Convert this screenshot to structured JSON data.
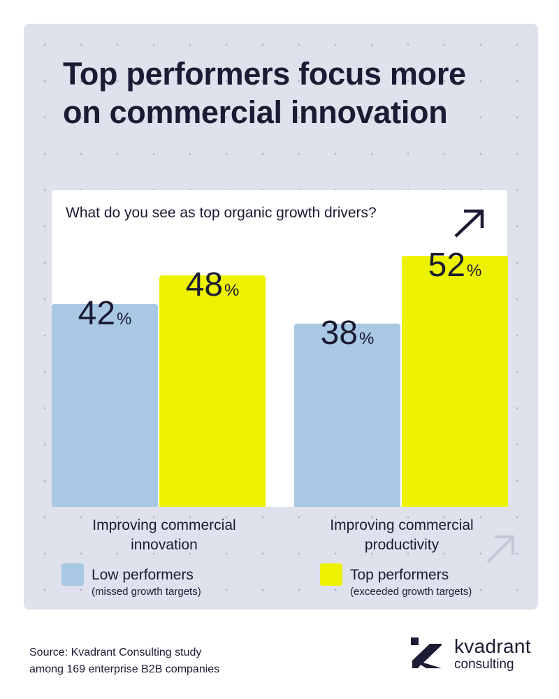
{
  "title": "Top performers focus more on commercial innovation",
  "colors": {
    "low": "#a8c8e3",
    "top": "#ecf200",
    "panel": "#dfe2ec",
    "text": "#1b1b33"
  },
  "chart_data": {
    "type": "bar",
    "title": "What do you see as top organic growth drivers?",
    "categories": [
      "Improving commercial innovation",
      "Improving commercial productivity"
    ],
    "series": [
      {
        "name": "Low performers",
        "note": "(missed growth targets)",
        "values": [
          42,
          38
        ]
      },
      {
        "name": "Top performers",
        "note": "(exceeded growth targets)",
        "values": [
          48,
          52
        ]
      }
    ],
    "unit": "%",
    "ylim": [
      0,
      100
    ]
  },
  "source": {
    "line1": "Source: Kvadrant Consulting study",
    "line2": "among 169 enterprise B2B companies"
  },
  "logo": {
    "name": "kvadrant",
    "sub": "consulting"
  },
  "icons": [
    "arrow-up-right-icon",
    "kvadrant-logo-icon"
  ]
}
